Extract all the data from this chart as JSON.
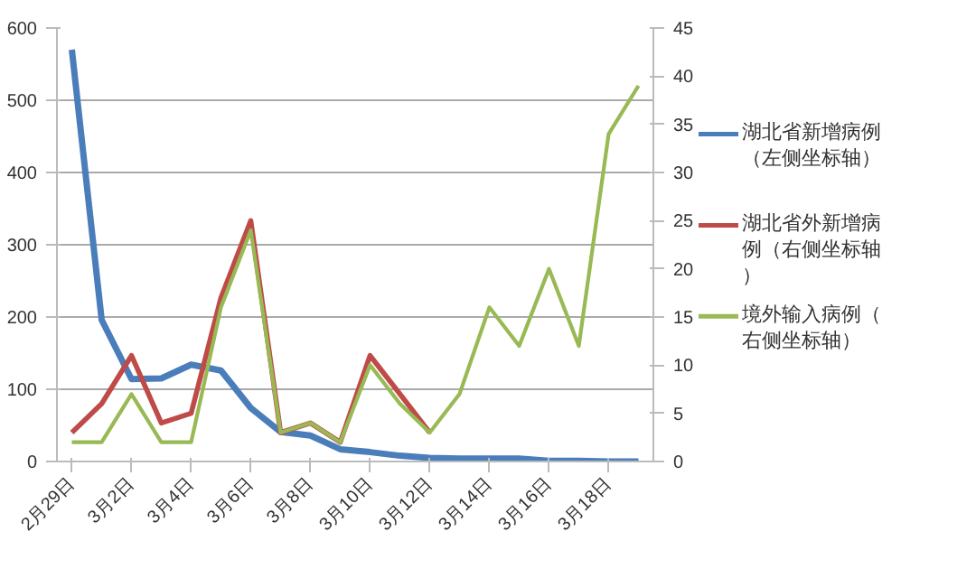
{
  "chart_data": {
    "type": "line",
    "categories": [
      "2月29日",
      null,
      "3月2日",
      null,
      "3月4日",
      null,
      "3月6日",
      null,
      "3月8日",
      null,
      "3月10日",
      null,
      "3月12日",
      null,
      "3月14日",
      null,
      "3月16日",
      null,
      "3月18日",
      null
    ],
    "series": [
      {
        "name": "湖北省新增病例（左侧坐标轴）",
        "color": "#4a7ebb",
        "values": [
          570,
          196,
          114,
          115,
          134,
          126,
          74,
          41,
          36,
          17,
          13,
          8,
          5,
          4,
          4,
          4,
          1,
          1,
          0,
          0
        ]
      },
      {
        "name": "湖北省外新增病例（右侧坐标轴）",
        "color": "#be4b48",
        "axis": "y2",
        "values": [
          3,
          6,
          11,
          4,
          5,
          17,
          25,
          3,
          4,
          2,
          11,
          7,
          3,
          null,
          null,
          null,
          null,
          null,
          null,
          null
        ]
      },
      {
        "name": "境外输入病例（右侧坐标轴）",
        "color": "#98b954",
        "axis": "y2",
        "values": [
          2,
          2,
          7,
          2,
          2,
          16,
          24,
          3,
          4,
          2,
          10,
          6,
          3,
          7,
          16,
          12,
          20,
          12,
          34,
          39
        ]
      }
    ],
    "ylim": [
      0,
      600
    ],
    "yticks": [
      0,
      100,
      200,
      300,
      400,
      500,
      600
    ],
    "y2lim": [
      0,
      45
    ],
    "y2ticks": [
      0,
      5,
      10,
      15,
      20,
      25,
      30,
      35,
      40,
      45
    ],
    "grid": "y",
    "legend": "right",
    "marker": "none",
    "line_style": "solid"
  }
}
